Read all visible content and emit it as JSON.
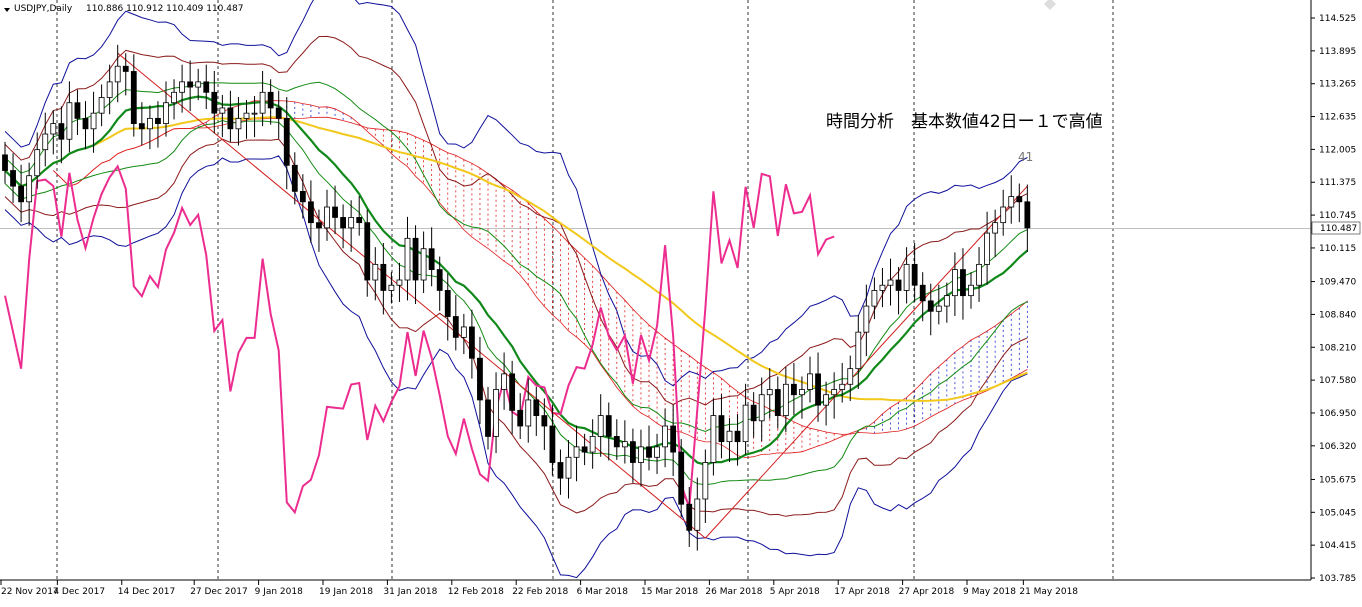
{
  "header": {
    "symbol_label": "USDJPY,Daily",
    "ohlc_text": "110.886 110.912 110.409 110.487"
  },
  "annotation": {
    "text": "時間分析　基本数値42日ー１で高値",
    "count_label": "41"
  },
  "current_price": "110.487",
  "colors": {
    "up_candle_fill": "#ffffff",
    "down_candle_fill": "#000000",
    "wick": "#000000",
    "ma_long": "#f2c81b",
    "ma_short": "#10891a",
    "indicator_pink": "#ec2d8f",
    "cloud_red": "#e01b1b",
    "cloud_blue": "#1a2ad6",
    "band_outer": "#10109a",
    "band_mid": "#8b1a1a",
    "band_inner": "#128a12",
    "trendline": "#d31b1b",
    "grid_dash": "#000000",
    "price_line": "#c0c0c0"
  },
  "chart_data": {
    "type": "candlestick",
    "symbol": "USDJPY",
    "timeframe": "Daily",
    "ylim": [
      103.785,
      114.525
    ],
    "y_ticks": [
      "114.525",
      "113.895",
      "113.265",
      "112.635",
      "112.005",
      "111.375",
      "110.745",
      "110.115",
      "109.470",
      "108.840",
      "108.210",
      "107.580",
      "106.950",
      "106.320",
      "105.675",
      "105.045",
      "104.415",
      "103.785"
    ],
    "x_ticks": [
      "22 Nov 2017",
      "4 Dec 2017",
      "14 Dec 2017",
      "27 Dec 2017",
      "9 Jan 2018",
      "19 Jan 2018",
      "31 Jan 2018",
      "12 Feb 2018",
      "22 Feb 2018",
      "6 Mar 2018",
      "15 Mar 2018",
      "26 Mar 2018",
      "5 Apr 2018",
      "17 Apr 2018",
      "27 Apr 2018",
      "9 May 2018",
      "21 May 2018"
    ],
    "series": [
      {
        "name": "close",
        "values": [
          111.6,
          111.3,
          111.0,
          111.5,
          112.0,
          112.3,
          112.5,
          112.2,
          112.9,
          112.6,
          112.4,
          112.7,
          113.0,
          113.3,
          113.6,
          113.5,
          112.5,
          112.4,
          112.6,
          112.5,
          112.9,
          113.1,
          113.3,
          113.2,
          113.3,
          113.1,
          112.7,
          112.8,
          112.4,
          112.6,
          112.7,
          112.7,
          113.1,
          112.8,
          112.6,
          111.7,
          111.2,
          111.0,
          110.6,
          110.5,
          110.9,
          110.7,
          110.5,
          110.7,
          110.6,
          109.5,
          109.8,
          109.3,
          109.4,
          109.5,
          110.3,
          109.5,
          110.1,
          109.7,
          109.3,
          108.8,
          108.4,
          108.6,
          108.0,
          107.2,
          106.5,
          107.4,
          107.7,
          107.0,
          106.7,
          107.2,
          106.9,
          106.7,
          106.0,
          105.7,
          106.1,
          106.3,
          106.2,
          106.5,
          106.9,
          106.5,
          106.3,
          106.4,
          106.0,
          106.3,
          106.1,
          106.3,
          106.7,
          106.2,
          105.2,
          104.7,
          105.3,
          106.0,
          106.9,
          106.4,
          106.6,
          106.4,
          107.1,
          106.8,
          107.3,
          107.4,
          106.9,
          107.5,
          107.3,
          107.4,
          107.7,
          107.1,
          107.3,
          107.4,
          107.5,
          107.8,
          108.5,
          109.0,
          109.3,
          109.4,
          109.5,
          109.3,
          109.8,
          109.4,
          109.1,
          108.9,
          109.0,
          109.2,
          109.7,
          109.2,
          109.4,
          109.8,
          110.4,
          110.6,
          110.9,
          111.1,
          111.0,
          110.5
        ]
      }
    ],
    "indicators": [
      "moving average (yellow)",
      "moving average (green)",
      "ichimoku-style cloud",
      "envelope bands",
      "pink oscillator line",
      "trendline channel"
    ]
  }
}
